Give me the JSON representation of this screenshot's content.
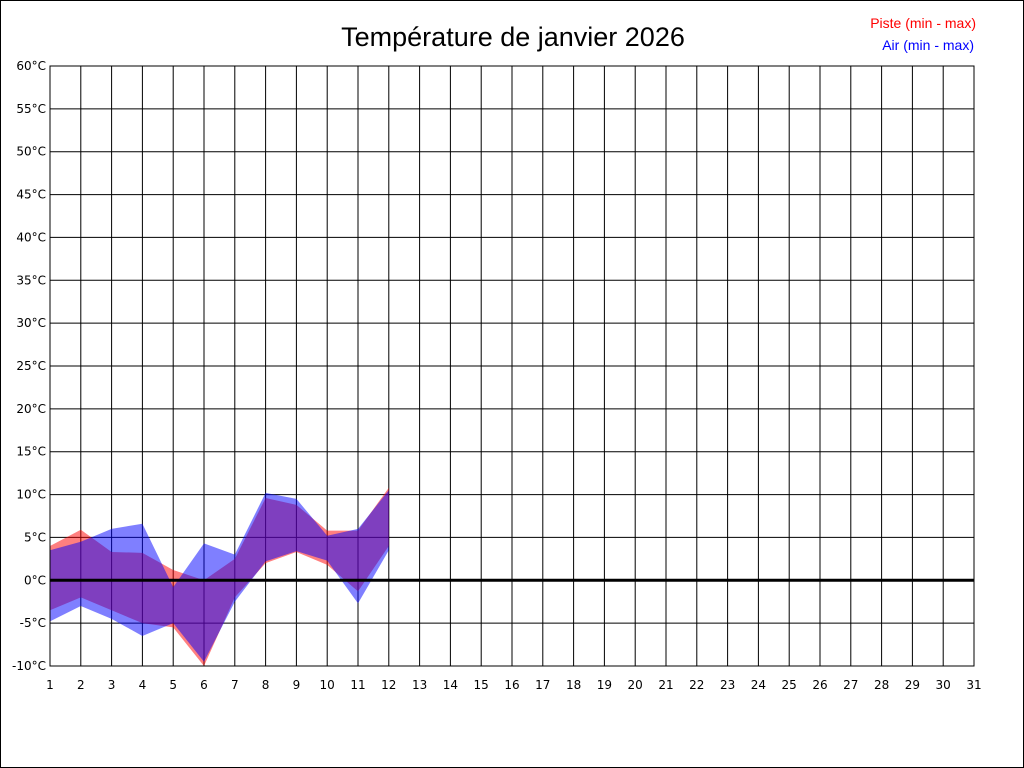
{
  "chart_data": {
    "type": "area",
    "title": "Température de janvier 2026",
    "legend_position": "top-right",
    "x": [
      1,
      2,
      3,
      4,
      5,
      6,
      7,
      8,
      9,
      10,
      11,
      12
    ],
    "x_ticks": [
      "1",
      "2",
      "3",
      "4",
      "5",
      "6",
      "7",
      "8",
      "9",
      "10",
      "11",
      "12",
      "13",
      "14",
      "15",
      "16",
      "17",
      "18",
      "19",
      "20",
      "21",
      "22",
      "23",
      "24",
      "25",
      "26",
      "27",
      "28",
      "29",
      "30",
      "31"
    ],
    "xlim": [
      1,
      31
    ],
    "ylim": [
      -10,
      60
    ],
    "y_ticks": [
      "-10°C",
      "-5°C",
      "0°C",
      "5°C",
      "10°C",
      "15°C",
      "20°C",
      "25°C",
      "30°C",
      "35°C",
      "40°C",
      "45°C",
      "50°C",
      "55°C",
      "60°C"
    ],
    "grid": true,
    "zero_line": true,
    "series": [
      {
        "name": "Piste (min - max)",
        "color": "#ff0000",
        "min": [
          -3.5,
          -2.0,
          -3.5,
          -5.0,
          -5.5,
          -10.0,
          -2.0,
          2.0,
          3.3,
          1.8,
          -1.3,
          4.0
        ],
        "max": [
          4.0,
          5.9,
          3.3,
          3.2,
          1.2,
          0.0,
          2.5,
          9.6,
          8.8,
          5.8,
          5.8,
          10.8
        ]
      },
      {
        "name": "Air (min - max)",
        "color": "#0000ff",
        "min": [
          -4.8,
          -3.0,
          -4.5,
          -6.5,
          -5.0,
          -9.5,
          -2.5,
          2.2,
          3.4,
          2.3,
          -2.7,
          3.5
        ],
        "max": [
          3.5,
          4.5,
          6.0,
          6.6,
          -0.8,
          4.3,
          3.0,
          10.2,
          9.5,
          5.2,
          6.0,
          10.5
        ]
      }
    ]
  }
}
